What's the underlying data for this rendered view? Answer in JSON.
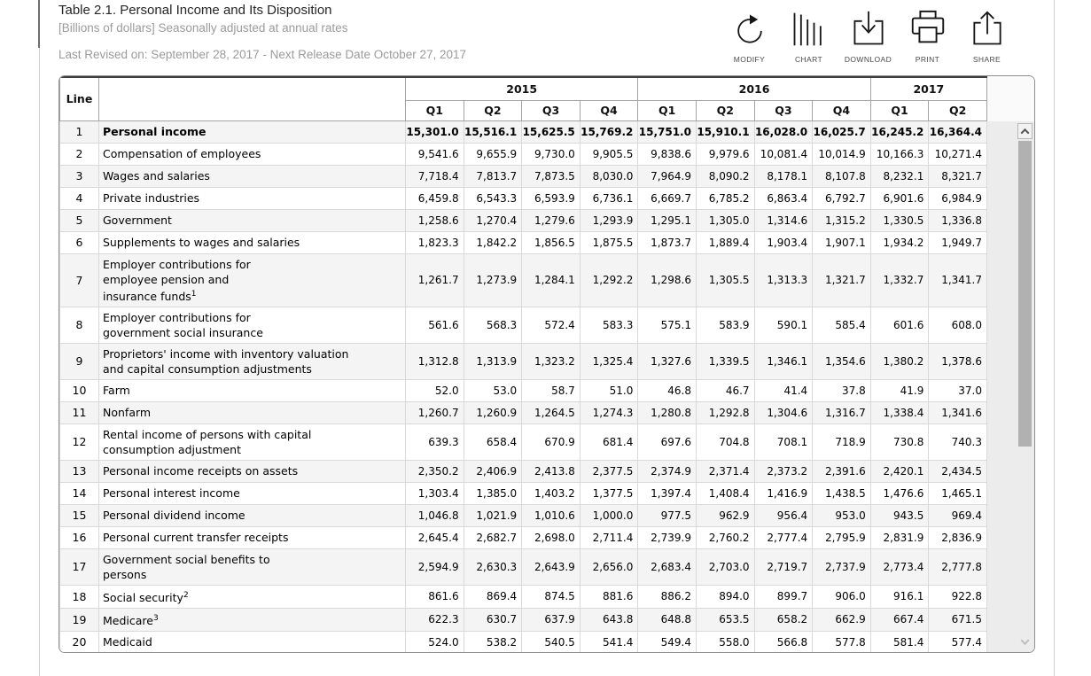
{
  "header": {
    "title": "Table 2.1. Personal Income and Its Disposition",
    "subtitle": "[Billions of dollars] Seasonally adjusted at annual rates",
    "revision_note": "Last Revised on: September 28, 2017 - Next Release Date October 27, 2017"
  },
  "toolbar": {
    "buttons": [
      {
        "label": "MODIFY",
        "icon": "refresh-icon"
      },
      {
        "label": "CHART",
        "icon": "bar-chart-icon"
      },
      {
        "label": "DOWNLOAD",
        "icon": "download-icon"
      },
      {
        "label": "PRINT",
        "icon": "printer-icon"
      },
      {
        "label": "SHARE",
        "icon": "share-icon"
      }
    ]
  },
  "colors": {
    "row_shade": "#f4f4f4",
    "panel_gray": "#ececec"
  },
  "table": {
    "line_header": "Line",
    "year_groups": [
      {
        "year": "2015",
        "quarters": [
          "Q1",
          "Q2",
          "Q3",
          "Q4"
        ]
      },
      {
        "year": "2016",
        "quarters": [
          "Q1",
          "Q2",
          "Q3",
          "Q4"
        ]
      },
      {
        "year": "2017",
        "quarters": [
          "Q1",
          "Q2"
        ]
      }
    ],
    "rows": [
      {
        "line": "1",
        "label": "Personal income",
        "sup": "",
        "indent": 0,
        "bold": true,
        "values": [
          "15,301.0",
          "15,516.1",
          "15,625.5",
          "15,769.2",
          "15,751.0",
          "15,910.1",
          "16,028.0",
          "16,025.7",
          "16,245.2",
          "16,364.4"
        ]
      },
      {
        "line": "2",
        "label": "Compensation of employees",
        "sup": "",
        "indent": 1,
        "bold": false,
        "values": [
          "9,541.6",
          "9,655.9",
          "9,730.0",
          "9,905.5",
          "9,838.6",
          "9,979.6",
          "10,081.4",
          "10,014.9",
          "10,166.3",
          "10,271.4"
        ]
      },
      {
        "line": "3",
        "label": "Wages and salaries",
        "sup": "",
        "indent": 2,
        "bold": false,
        "values": [
          "7,718.4",
          "7,813.7",
          "7,873.5",
          "8,030.0",
          "7,964.9",
          "8,090.2",
          "8,178.1",
          "8,107.8",
          "8,232.1",
          "8,321.7"
        ]
      },
      {
        "line": "4",
        "label": "Private industries",
        "sup": "",
        "indent": 3,
        "bold": false,
        "values": [
          "6,459.8",
          "6,543.3",
          "6,593.9",
          "6,736.1",
          "6,669.7",
          "6,785.2",
          "6,863.4",
          "6,792.7",
          "6,901.6",
          "6,984.9"
        ]
      },
      {
        "line": "5",
        "label": "Government",
        "sup": "",
        "indent": 3,
        "bold": false,
        "values": [
          "1,258.6",
          "1,270.4",
          "1,279.6",
          "1,293.9",
          "1,295.1",
          "1,305.0",
          "1,314.6",
          "1,315.2",
          "1,330.5",
          "1,336.8"
        ]
      },
      {
        "line": "6",
        "label": "Supplements to wages and salaries",
        "sup": "",
        "indent": 2,
        "bold": false,
        "values": [
          "1,823.3",
          "1,842.2",
          "1,856.5",
          "1,875.5",
          "1,873.7",
          "1,889.4",
          "1,903.4",
          "1,907.1",
          "1,934.2",
          "1,949.7"
        ]
      },
      {
        "line": "7",
        "label": "Employer contributions for\nemployee pension and\ninsurance funds",
        "sup": "1",
        "indent": 3,
        "bold": false,
        "values": [
          "1,261.7",
          "1,273.9",
          "1,284.1",
          "1,292.2",
          "1,298.6",
          "1,305.5",
          "1,313.3",
          "1,321.7",
          "1,332.7",
          "1,341.7"
        ]
      },
      {
        "line": "8",
        "label": "Employer contributions for\ngovernment social insurance",
        "sup": "",
        "indent": 3,
        "bold": false,
        "values": [
          "561.6",
          "568.3",
          "572.4",
          "583.3",
          "575.1",
          "583.9",
          "590.1",
          "585.4",
          "601.6",
          "608.0"
        ]
      },
      {
        "line": "9",
        "label": "Proprietors' income with inventory valuation\nand capital consumption adjustments",
        "sup": "",
        "indent": 1,
        "bold": false,
        "values": [
          "1,312.8",
          "1,313.9",
          "1,323.2",
          "1,325.4",
          "1,327.6",
          "1,339.5",
          "1,346.1",
          "1,354.6",
          "1,380.2",
          "1,378.6"
        ]
      },
      {
        "line": "10",
        "label": "Farm",
        "sup": "",
        "indent": 2,
        "bold": false,
        "values": [
          "52.0",
          "53.0",
          "58.7",
          "51.0",
          "46.8",
          "46.7",
          "41.4",
          "37.8",
          "41.9",
          "37.0"
        ]
      },
      {
        "line": "11",
        "label": "Nonfarm",
        "sup": "",
        "indent": 2,
        "bold": false,
        "values": [
          "1,260.7",
          "1,260.9",
          "1,264.5",
          "1,274.3",
          "1,280.8",
          "1,292.8",
          "1,304.6",
          "1,316.7",
          "1,338.4",
          "1,341.6"
        ]
      },
      {
        "line": "12",
        "label": "Rental income of persons with capital\nconsumption adjustment",
        "sup": "",
        "indent": 1,
        "bold": false,
        "values": [
          "639.3",
          "658.4",
          "670.9",
          "681.4",
          "697.6",
          "704.8",
          "708.1",
          "718.9",
          "730.8",
          "740.3"
        ]
      },
      {
        "line": "13",
        "label": "Personal income receipts on assets",
        "sup": "",
        "indent": 1,
        "bold": false,
        "values": [
          "2,350.2",
          "2,406.9",
          "2,413.8",
          "2,377.5",
          "2,374.9",
          "2,371.4",
          "2,373.2",
          "2,391.6",
          "2,420.1",
          "2,434.5"
        ]
      },
      {
        "line": "14",
        "label": "Personal interest income",
        "sup": "",
        "indent": 2,
        "bold": false,
        "values": [
          "1,303.4",
          "1,385.0",
          "1,403.2",
          "1,377.5",
          "1,397.4",
          "1,408.4",
          "1,416.9",
          "1,438.5",
          "1,476.6",
          "1,465.1"
        ]
      },
      {
        "line": "15",
        "label": "Personal dividend income",
        "sup": "",
        "indent": 2,
        "bold": false,
        "values": [
          "1,046.8",
          "1,021.9",
          "1,010.6",
          "1,000.0",
          "977.5",
          "962.9",
          "956.4",
          "953.0",
          "943.5",
          "969.4"
        ]
      },
      {
        "line": "16",
        "label": "Personal current transfer receipts",
        "sup": "",
        "indent": 1,
        "bold": false,
        "values": [
          "2,645.4",
          "2,682.7",
          "2,698.0",
          "2,711.4",
          "2,739.9",
          "2,760.2",
          "2,777.4",
          "2,795.9",
          "2,831.9",
          "2,836.9"
        ]
      },
      {
        "line": "17",
        "label": "Government social benefits to\npersons",
        "sup": "",
        "indent": 2,
        "bold": false,
        "values": [
          "2,594.9",
          "2,630.3",
          "2,643.9",
          "2,656.0",
          "2,683.4",
          "2,703.0",
          "2,719.7",
          "2,737.9",
          "2,773.4",
          "2,777.8"
        ]
      },
      {
        "line": "18",
        "label": "Social security",
        "sup": "2",
        "indent": 3,
        "bold": false,
        "values": [
          "861.6",
          "869.4",
          "874.5",
          "881.6",
          "886.2",
          "894.0",
          "899.7",
          "906.0",
          "916.1",
          "922.8"
        ]
      },
      {
        "line": "19",
        "label": "Medicare",
        "sup": "3",
        "indent": 3,
        "bold": false,
        "values": [
          "622.3",
          "630.7",
          "637.9",
          "643.8",
          "648.8",
          "653.5",
          "658.2",
          "662.9",
          "667.4",
          "671.5"
        ]
      },
      {
        "line": "20",
        "label": "Medicaid",
        "sup": "",
        "indent": 3,
        "bold": false,
        "values": [
          "524.0",
          "538.2",
          "540.5",
          "541.4",
          "549.4",
          "558.0",
          "566.8",
          "577.8",
          "581.4",
          "577.4"
        ]
      }
    ]
  }
}
